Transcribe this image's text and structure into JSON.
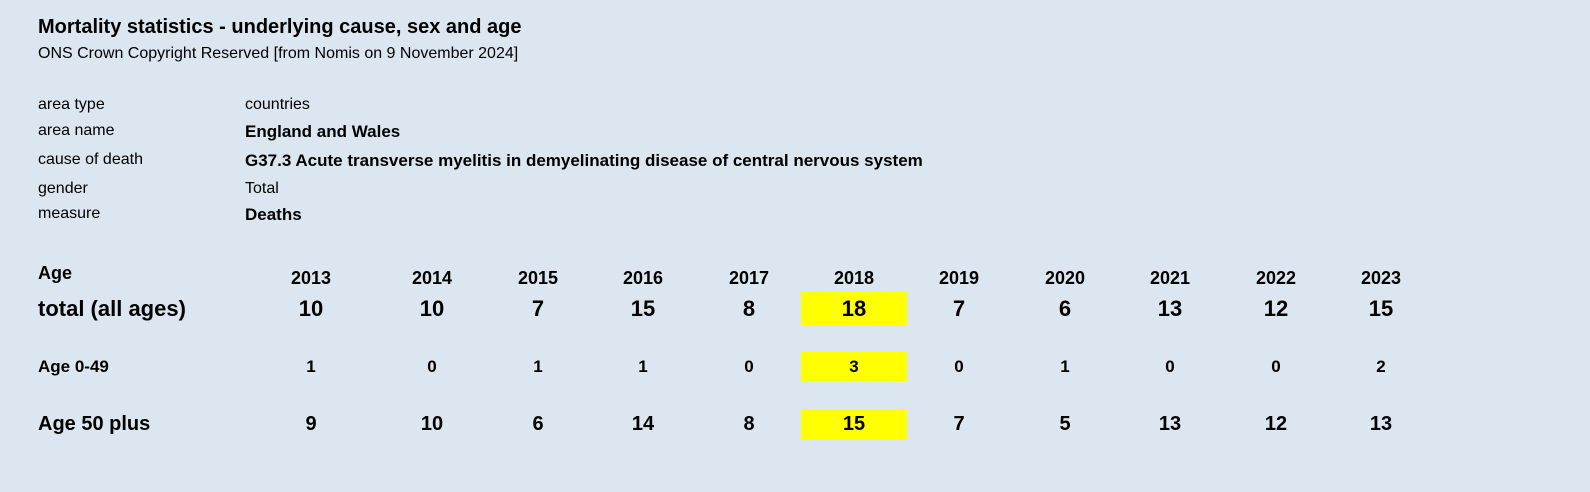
{
  "title": "Mortality statistics - underlying cause, sex and age",
  "subtitle": "ONS Crown Copyright Reserved [from Nomis on 9 November 2024]",
  "meta": [
    {
      "label": "area type",
      "value": "countries",
      "bold": false
    },
    {
      "label": "area name",
      "value": "England and Wales",
      "bold": true
    },
    {
      "label": "cause of death",
      "value": "G37.3 Acute transverse myelitis in demyelinating disease of central nervous system",
      "bold": true
    },
    {
      "label": "gender",
      "value": "Total",
      "bold": false
    },
    {
      "label": "measure",
      "value": "Deaths",
      "bold": true
    }
  ],
  "table": {
    "age_header": "Age",
    "years": [
      "2013",
      "2014",
      "2015",
      "2016",
      "2017",
      "2018",
      "2019",
      "2020",
      "2021",
      "2022",
      "2023"
    ],
    "highlight_year": "2018",
    "highlight_color": "#ffff00",
    "rows": [
      {
        "label": "total (all ages)",
        "values": [
          "10",
          "10",
          "7",
          "15",
          "8",
          "18",
          "7",
          "6",
          "13",
          "12",
          "15"
        ]
      },
      {
        "label": "Age 0-49",
        "values": [
          "1",
          "0",
          "1",
          "1",
          "0",
          "3",
          "0",
          "1",
          "0",
          "0",
          "2"
        ]
      },
      {
        "label": "Age 50 plus",
        "values": [
          "9",
          "10",
          "6",
          "14",
          "8",
          "15",
          "7",
          "5",
          "13",
          "12",
          "13"
        ]
      }
    ]
  }
}
